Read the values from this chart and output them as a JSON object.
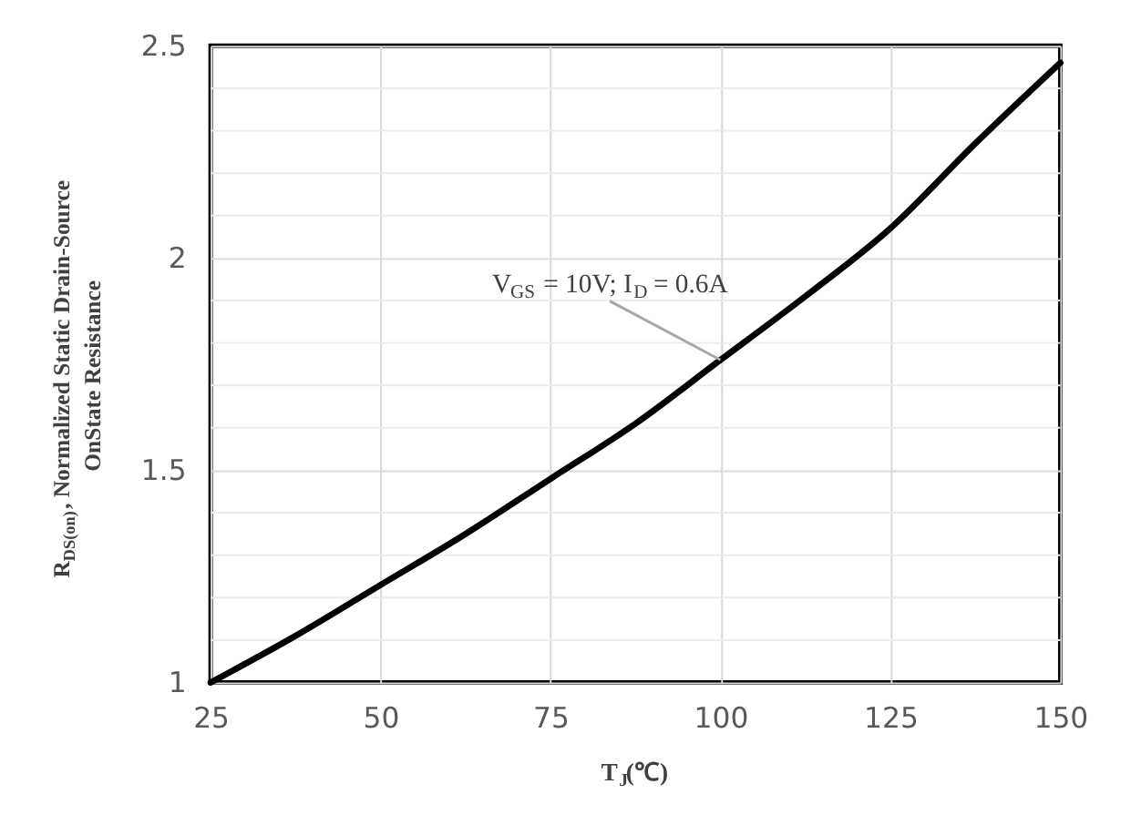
{
  "chart_data": {
    "type": "line",
    "xlabel": "T$_{J}$(℃)",
    "ylabel": "R$_{DS(on)}$, Normalized Static Drain-Source\nOnState Resistance",
    "x": [
      25,
      37.5,
      50,
      62.5,
      75,
      87.5,
      100,
      112.5,
      125,
      137.5,
      150
    ],
    "series": [
      {
        "color": "#000000",
        "values": [
          1.0,
          1.11,
          1.23,
          1.35,
          1.48,
          1.61,
          1.76,
          1.91,
          2.07,
          2.27,
          2.46
        ]
      }
    ],
    "xlim": [
      25,
      150
    ],
    "xticks": [
      25,
      50,
      75,
      100,
      125,
      150
    ],
    "ylim": [
      1,
      2.5
    ],
    "yticks": [
      1,
      {
        "value": 1.1,
        "label": null
      },
      {
        "value": 1.2,
        "label": null
      },
      {
        "value": 1.3,
        "label": null
      },
      {
        "value": 1.4,
        "label": null
      },
      1.5,
      {
        "value": 1.6,
        "label": null
      },
      {
        "value": 1.7,
        "label": null
      },
      {
        "value": 1.8,
        "label": null
      },
      {
        "value": 1.9,
        "label": null
      },
      2,
      {
        "value": 2.1,
        "label": null
      },
      {
        "value": 2.2,
        "label": null
      },
      {
        "value": 2.3,
        "label": null
      },
      {
        "value": 2.4,
        "label": null
      },
      2.5
    ],
    "annotations": [
      {
        "text": "V$_{GS}$ = 10V; I$_{D}$ = 0.6A",
        "x": 100,
        "y": 1.76
      }
    ],
    "grid": true,
    "marker": "none",
    "line_style": "solid"
  }
}
